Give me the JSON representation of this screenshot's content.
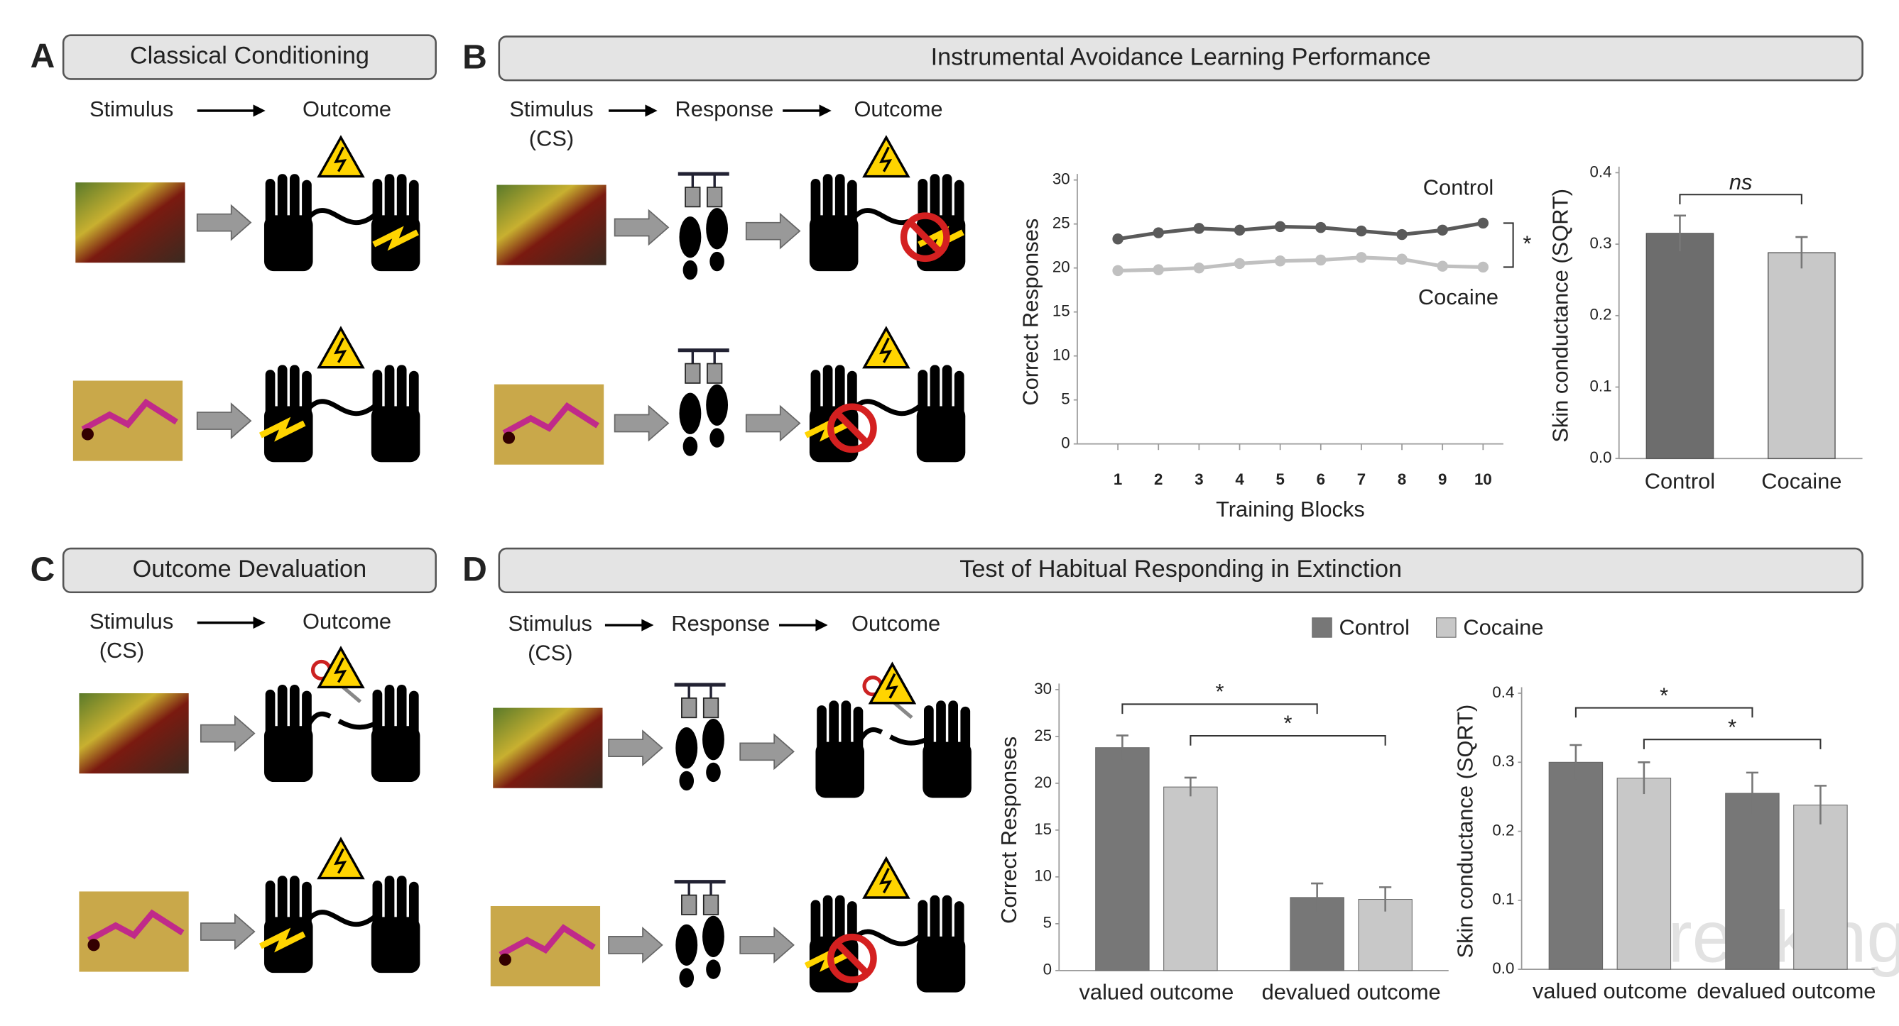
{
  "panels": [
    {
      "letter": "A",
      "title": "Classical Conditioning",
      "flow": [
        "Stimulus",
        "Outcome"
      ]
    },
    {
      "letter": "B",
      "title": "Instrumental Avoidance Learning Performance",
      "flow": [
        "Stimulus",
        "Response",
        "Outcome"
      ],
      "flow_note": "(CS)"
    },
    {
      "letter": "C",
      "title": "Outcome Devaluation",
      "flow": [
        "Stimulus",
        "Outcome"
      ],
      "flow_note": "(CS)"
    },
    {
      "letter": "D",
      "title": "Test of Habitual Responding in Extinction",
      "flow": [
        "Stimulus",
        "Response",
        "Outcome"
      ],
      "flow_note": "(CS)"
    }
  ],
  "watermark": "Breaking Bad",
  "chart_data": [
    {
      "type": "line",
      "x": [
        1,
        2,
        3,
        4,
        5,
        6,
        7,
        8,
        9,
        10
      ],
      "xlim": [
        0,
        10.5
      ],
      "xticks": [
        1,
        2,
        3,
        4,
        5,
        6,
        7,
        8,
        9,
        10
      ],
      "ylim": [
        0,
        30
      ],
      "yticks": [
        0,
        5,
        10,
        15,
        20,
        25,
        30
      ],
      "xlabel": "Training Blocks",
      "ylabel": "Correct Responses",
      "series": [
        {
          "name": "Control",
          "color": "#5a5a5a",
          "values": [
            23.3,
            24,
            24.5,
            24.3,
            24.7,
            24.6,
            24.2,
            23.8,
            24.3,
            25.1
          ]
        },
        {
          "name": "Cocaine",
          "color": "#c0c0c0",
          "values": [
            19.7,
            19.8,
            20,
            20.5,
            20.8,
            20.9,
            21.2,
            21,
            20.2,
            20.1
          ]
        }
      ],
      "significance": "*"
    },
    {
      "type": "bar",
      "categories": [
        "Control",
        "Cocaine"
      ],
      "values": [
        0.315,
        0.288
      ],
      "errors": [
        0.025,
        0.022
      ],
      "colors": [
        "#6d6d6d",
        "#c8c8c8"
      ],
      "ylim": [
        0,
        0.4
      ],
      "yticks": [
        {
          "value": 0,
          "label": "0.0"
        },
        0.1,
        0.2,
        0.3,
        0.4
      ],
      "ylabel": "Skin conductance (SQRT)",
      "brackets": [
        "ns"
      ]
    },
    {
      "type": "grouped_bar",
      "categories": [
        "valued outcome",
        "devalued outcome"
      ],
      "ylim": [
        0,
        30
      ],
      "yticks": [
        0,
        5,
        10,
        15,
        20,
        25,
        30
      ],
      "ylabel": "Correct Responses",
      "series": [
        {
          "name": "Control",
          "color": "#777777",
          "values": [
            23.8,
            7.8
          ],
          "errors": [
            1.3,
            1.5
          ]
        },
        {
          "name": "Cocaine",
          "color": "#c8c8c8",
          "values": [
            19.6,
            7.6
          ],
          "errors": [
            1.0,
            1.3
          ]
        }
      ],
      "brackets": [
        "*",
        "*"
      ]
    },
    {
      "type": "grouped_bar",
      "categories": [
        "valued outcome",
        "devalued outcome"
      ],
      "ylim": [
        0,
        0.4
      ],
      "yticks": [
        {
          "value": 0,
          "label": "0.0"
        },
        0.1,
        0.2,
        0.3,
        0.4
      ],
      "ylabel": "Skin conductance (SQRT)",
      "series": [
        {
          "name": "Control",
          "color": "#777777",
          "values": [
            0.3,
            0.255
          ],
          "errors": [
            0.025,
            0.03
          ]
        },
        {
          "name": "Cocaine",
          "color": "#c8c8c8",
          "values": [
            0.277,
            0.238
          ],
          "errors": [
            0.023,
            0.028
          ]
        }
      ],
      "brackets": [
        "*",
        "*"
      ]
    }
  ]
}
